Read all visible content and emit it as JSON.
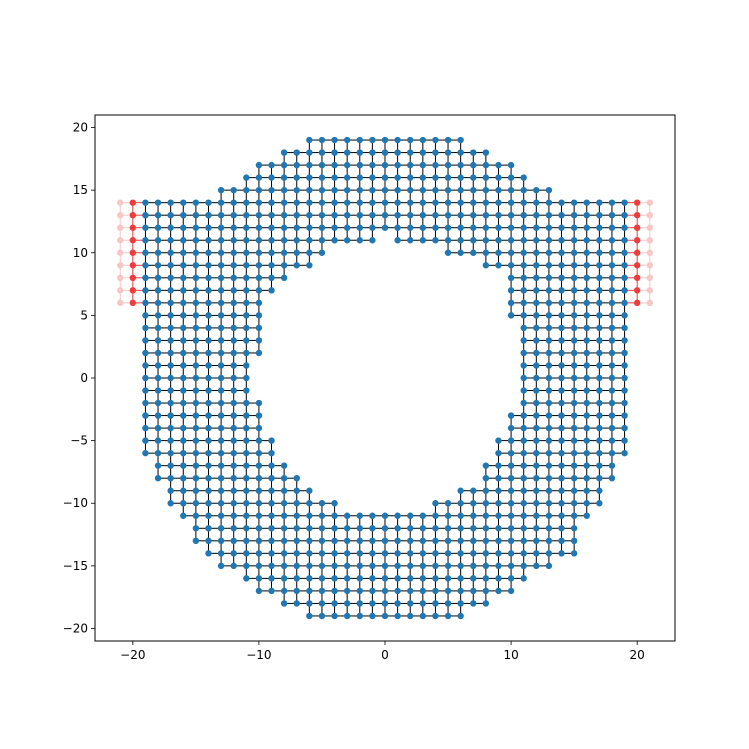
{
  "chart_data": {
    "type": "scatter",
    "title": "",
    "xlabel": "",
    "ylabel": "",
    "xlim": [
      -23,
      23
    ],
    "ylim": [
      -21,
      21
    ],
    "xticks": [
      -20,
      -10,
      0,
      10,
      20
    ],
    "yticks": [
      -20,
      -15,
      -10,
      -5,
      0,
      5,
      10,
      15,
      20
    ],
    "xtick_labels": [
      "−20",
      "−10",
      "0",
      "10",
      "20"
    ],
    "ytick_labels": [
      "−20",
      "−15",
      "−10",
      "−5",
      "0",
      "5",
      "10",
      "15",
      "20"
    ],
    "grid": false,
    "legend": "none",
    "description_of_structure": "",
    "series": [
      {
        "role": "lattice",
        "color": "#1f77b4",
        "edges": "nearest-neighbor grid lines in black between adjacent lattice nodes",
        "rows": [
          {
            "y": 19,
            "x_min": -6,
            "x_max": 6,
            "holes": []
          },
          {
            "y": 18,
            "x_min": -8,
            "x_max": 8,
            "holes": []
          },
          {
            "y": 17,
            "x_min": -10,
            "x_max": 10,
            "holes": []
          },
          {
            "y": 16,
            "x_min": -11,
            "x_max": 11,
            "holes": []
          },
          {
            "y": 15,
            "x_min": -13,
            "x_max": 13,
            "holes": []
          },
          {
            "y": 14,
            "x_min": -19,
            "x_max": 19,
            "holes": []
          },
          {
            "y": 13,
            "x_min": -19,
            "x_max": 19,
            "holes": []
          },
          {
            "y": 12,
            "x_min": -19,
            "x_max": 19,
            "holes": []
          },
          {
            "y": 11,
            "x_min": -19,
            "x_max": 19,
            "holes": [
              0
            ]
          },
          {
            "y": 10,
            "x_min": -19,
            "x_max": 19,
            "holes": [
              -4,
              -3,
              -2,
              -1,
              0,
              1,
              2,
              3,
              4
            ]
          },
          {
            "y": 9,
            "x_min": -19,
            "x_max": 19,
            "holes": [
              -5,
              -4,
              -3,
              -2,
              -1,
              0,
              1,
              2,
              3,
              4,
              5,
              6,
              7
            ]
          },
          {
            "y": 8,
            "x_min": -19,
            "x_max": 19,
            "holes": [
              -7,
              -6,
              -5,
              -4,
              -3,
              -2,
              -1,
              0,
              1,
              2,
              3,
              4,
              5,
              6,
              7,
              8,
              9
            ]
          },
          {
            "y": 7,
            "x_min": -19,
            "x_max": 19,
            "holes": [
              -8,
              -7,
              -6,
              -5,
              -4,
              -3,
              -2,
              -1,
              0,
              1,
              2,
              3,
              4,
              5,
              6,
              7,
              8,
              9
            ]
          },
          {
            "y": 6,
            "x_min": -19,
            "x_max": 19,
            "holes": [
              -9,
              -8,
              -7,
              -6,
              -5,
              -4,
              -3,
              -2,
              -1,
              0,
              1,
              2,
              3,
              4,
              5,
              6,
              7,
              8,
              9
            ]
          },
          {
            "y": 5,
            "x_min": -19,
            "x_max": 19,
            "holes": [
              -9,
              -8,
              -7,
              -6,
              -5,
              -4,
              -3,
              -2,
              -1,
              0,
              1,
              2,
              3,
              4,
              5,
              6,
              7,
              8,
              9
            ]
          },
          {
            "y": 4,
            "x_min": -19,
            "x_max": 19,
            "holes": [
              -9,
              -8,
              -7,
              -6,
              -5,
              -4,
              -3,
              -2,
              -1,
              0,
              1,
              2,
              3,
              4,
              5,
              6,
              7,
              8,
              9,
              10
            ]
          },
          {
            "y": 3,
            "x_min": -19,
            "x_max": 19,
            "holes": [
              -9,
              -8,
              -7,
              -6,
              -5,
              -4,
              -3,
              -2,
              -1,
              0,
              1,
              2,
              3,
              4,
              5,
              6,
              7,
              8,
              9,
              10
            ]
          },
          {
            "y": 2,
            "x_min": -19,
            "x_max": 19,
            "holes": [
              -9,
              -8,
              -7,
              -6,
              -5,
              -4,
              -3,
              -2,
              -1,
              0,
              1,
              2,
              3,
              4,
              5,
              6,
              7,
              8,
              9,
              10
            ]
          },
          {
            "y": 1,
            "x_min": -19,
            "x_max": 19,
            "holes": [
              -10,
              -9,
              -8,
              -7,
              -6,
              -5,
              -4,
              -3,
              -2,
              -1,
              0,
              1,
              2,
              3,
              4,
              5,
              6,
              7,
              8,
              9,
              10
            ]
          },
          {
            "y": 0,
            "x_min": -19,
            "x_max": 19,
            "holes": [
              -10,
              -9,
              -8,
              -7,
              -6,
              -5,
              -4,
              -3,
              -2,
              -1,
              0,
              1,
              2,
              3,
              4,
              5,
              6,
              7,
              8,
              9,
              10
            ]
          },
          {
            "y": -1,
            "x_min": -19,
            "x_max": 19,
            "holes": [
              -10,
              -9,
              -8,
              -7,
              -6,
              -5,
              -4,
              -3,
              -2,
              -1,
              0,
              1,
              2,
              3,
              4,
              5,
              6,
              7,
              8,
              9,
              10
            ]
          },
          {
            "y": -2,
            "x_min": -19,
            "x_max": 19,
            "holes": [
              -9,
              -8,
              -7,
              -6,
              -5,
              -4,
              -3,
              -2,
              -1,
              0,
              1,
              2,
              3,
              4,
              5,
              6,
              7,
              8,
              9,
              10
            ]
          },
          {
            "y": -3,
            "x_min": -19,
            "x_max": 19,
            "holes": [
              -9,
              -8,
              -7,
              -6,
              -5,
              -4,
              -3,
              -2,
              -1,
              0,
              1,
              2,
              3,
              4,
              5,
              6,
              7,
              8,
              9
            ]
          },
          {
            "y": -4,
            "x_min": -19,
            "x_max": 19,
            "holes": [
              -9,
              -8,
              -7,
              -6,
              -5,
              -4,
              -3,
              -2,
              -1,
              0,
              1,
              2,
              3,
              4,
              5,
              6,
              7,
              8,
              9
            ]
          },
          {
            "y": -5,
            "x_min": -19,
            "x_max": 19,
            "holes": [
              -8,
              -7,
              -6,
              -5,
              -4,
              -3,
              -2,
              -1,
              0,
              1,
              2,
              3,
              4,
              5,
              6,
              7,
              8
            ]
          },
          {
            "y": -6,
            "x_min": -19,
            "x_max": 19,
            "holes": [
              -8,
              -7,
              -6,
              -5,
              -4,
              -3,
              -2,
              -1,
              0,
              1,
              2,
              3,
              4,
              5,
              6,
              7,
              8
            ]
          },
          {
            "y": -7,
            "x_min": -18,
            "x_max": 18,
            "holes": [
              -7,
              -6,
              -5,
              -4,
              -3,
              -2,
              -1,
              0,
              1,
              2,
              3,
              4,
              5,
              6,
              7
            ]
          },
          {
            "y": -8,
            "x_min": -18,
            "x_max": 18,
            "holes": [
              -6,
              -5,
              -4,
              -3,
              -2,
              -1,
              0,
              1,
              2,
              3,
              4,
              5,
              6,
              7
            ]
          },
          {
            "y": -9,
            "x_min": -17,
            "x_max": 17,
            "holes": [
              -5,
              -4,
              -3,
              -2,
              -1,
              0,
              1,
              2,
              3,
              4,
              5
            ]
          },
          {
            "y": -10,
            "x_min": -17,
            "x_max": 17,
            "holes": [
              -3,
              -2,
              -1,
              0,
              1,
              2,
              3
            ]
          },
          {
            "y": -11,
            "x_min": -16,
            "x_max": 16,
            "holes": []
          },
          {
            "y": -12,
            "x_min": -15,
            "x_max": 15,
            "holes": []
          },
          {
            "y": -13,
            "x_min": -15,
            "x_max": 15,
            "holes": []
          },
          {
            "y": -14,
            "x_min": -14,
            "x_max": 15,
            "holes": []
          },
          {
            "y": -15,
            "x_min": -13,
            "x_max": 13,
            "holes": []
          },
          {
            "y": -16,
            "x_min": -11,
            "x_max": 11,
            "holes": []
          },
          {
            "y": -17,
            "x_min": -10,
            "x_max": 10,
            "holes": []
          },
          {
            "y": -18,
            "x_min": -8,
            "x_max": 8,
            "holes": []
          },
          {
            "y": -19,
            "x_min": -6,
            "x_max": 6,
            "holes": []
          }
        ]
      },
      {
        "role": "lead-inner",
        "color": "#ee3b3b",
        "x": [
          -20,
          20
        ],
        "y_min": 6,
        "y_max": 14
      },
      {
        "role": "lead-outer",
        "color": "#f7c6c6",
        "x": [
          -21,
          21
        ],
        "y_min": 6,
        "y_max": 14
      }
    ]
  }
}
